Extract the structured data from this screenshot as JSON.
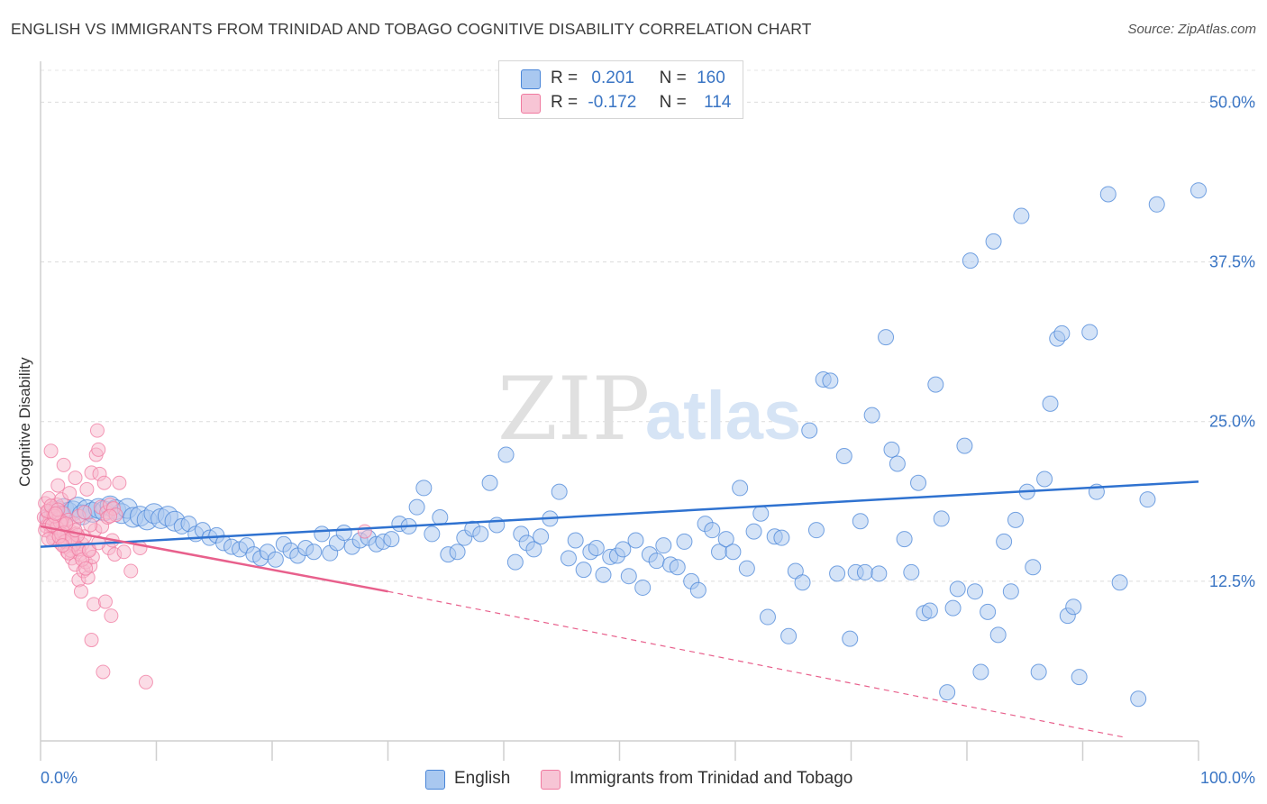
{
  "title": "ENGLISH VS IMMIGRANTS FROM TRINIDAD AND TOBAGO COGNITIVE DISABILITY CORRELATION CHART",
  "source": "Source: ZipAtlas.com",
  "watermark": {
    "zip": "ZIP",
    "atlas": "atlas"
  },
  "legend_top": [
    {
      "r_label": "R =",
      "r_value": "0.201",
      "n_label": "N =",
      "n_value": "160",
      "color": "#4a86d8"
    },
    {
      "r_label": "R =",
      "r_value": "-0.172",
      "n_label": "N =",
      "n_value": "114",
      "color": "#f07aa0"
    }
  ],
  "legend_bottom": [
    {
      "label": "English",
      "color": "#4a86d8"
    },
    {
      "label": "Immigrants from Trinidad and Tobago",
      "color": "#f07aa0"
    }
  ],
  "chart_data": {
    "type": "scatter",
    "title": "ENGLISH VS IMMIGRANTS FROM TRINIDAD AND TOBAGO COGNITIVE DISABILITY CORRELATION CHART",
    "xlabel": "",
    "ylabel": "Cognitive Disability",
    "xlim": [
      0,
      100
    ],
    "ylim": [
      0,
      52.5
    ],
    "x_tick_labels": [
      "0.0%",
      "100.0%"
    ],
    "y_ticks": [
      12.5,
      25.0,
      37.5,
      50.0
    ],
    "y_tick_labels": [
      "12.5%",
      "25.0%",
      "37.5%",
      "50.0%"
    ],
    "grid": "horizontal dashed",
    "series": [
      {
        "name": "English",
        "color": "#4a86d8",
        "fill": "#a9c8f0",
        "trend": {
          "x": [
            0,
            100
          ],
          "y": [
            15.2,
            20.3
          ],
          "style": "solid"
        },
        "points": [
          [
            0.8,
            17.5
          ],
          [
            1.2,
            17.8
          ],
          [
            1.5,
            18.0
          ],
          [
            1.8,
            17.6
          ],
          [
            2.0,
            18.2
          ],
          [
            2.4,
            17.9
          ],
          [
            2.8,
            18.0
          ],
          [
            3.2,
            18.3
          ],
          [
            3.6,
            17.7
          ],
          [
            4.0,
            18.1
          ],
          [
            4.5,
            17.9
          ],
          [
            5.0,
            18.2
          ],
          [
            5.5,
            18.0
          ],
          [
            6.0,
            18.4
          ],
          [
            6.5,
            18.1
          ],
          [
            7.0,
            17.8
          ],
          [
            7.5,
            18.2
          ],
          [
            8.0,
            17.5
          ],
          [
            8.6,
            17.6
          ],
          [
            9.2,
            17.3
          ],
          [
            9.8,
            17.8
          ],
          [
            10.4,
            17.4
          ],
          [
            11.0,
            17.6
          ],
          [
            11.6,
            17.2
          ],
          [
            12.2,
            16.8
          ],
          [
            12.8,
            17.0
          ],
          [
            13.4,
            16.2
          ],
          [
            14.0,
            16.5
          ],
          [
            14.6,
            15.9
          ],
          [
            15.2,
            16.1
          ],
          [
            15.8,
            15.5
          ],
          [
            16.5,
            15.2
          ],
          [
            17.2,
            15.0
          ],
          [
            17.8,
            15.3
          ],
          [
            18.4,
            14.6
          ],
          [
            19.0,
            14.3
          ],
          [
            19.6,
            14.8
          ],
          [
            20.3,
            14.2
          ],
          [
            21.0,
            15.4
          ],
          [
            21.6,
            14.9
          ],
          [
            22.2,
            14.5
          ],
          [
            22.9,
            15.1
          ],
          [
            23.6,
            14.8
          ],
          [
            24.3,
            16.2
          ],
          [
            25.0,
            14.7
          ],
          [
            25.6,
            15.5
          ],
          [
            26.2,
            16.3
          ],
          [
            26.9,
            15.2
          ],
          [
            27.6,
            15.7
          ],
          [
            28.3,
            15.9
          ],
          [
            29.0,
            15.4
          ],
          [
            29.6,
            15.6
          ],
          [
            30.3,
            15.8
          ],
          [
            31.0,
            17.0
          ],
          [
            31.8,
            16.8
          ],
          [
            32.5,
            18.3
          ],
          [
            33.1,
            19.8
          ],
          [
            33.8,
            16.2
          ],
          [
            34.5,
            17.5
          ],
          [
            35.2,
            14.6
          ],
          [
            36.0,
            14.8
          ],
          [
            36.6,
            15.9
          ],
          [
            37.3,
            16.6
          ],
          [
            38.0,
            16.2
          ],
          [
            38.8,
            20.2
          ],
          [
            39.4,
            16.9
          ],
          [
            40.2,
            22.4
          ],
          [
            41.0,
            14.0
          ],
          [
            41.5,
            16.2
          ],
          [
            42.0,
            15.5
          ],
          [
            42.6,
            15.0
          ],
          [
            43.2,
            16.0
          ],
          [
            44.0,
            17.4
          ],
          [
            44.8,
            19.5
          ],
          [
            45.6,
            14.3
          ],
          [
            46.2,
            15.7
          ],
          [
            46.9,
            13.4
          ],
          [
            47.5,
            14.8
          ],
          [
            48.0,
            15.1
          ],
          [
            48.6,
            13.0
          ],
          [
            49.2,
            14.4
          ],
          [
            49.8,
            14.5
          ],
          [
            50.3,
            15.0
          ],
          [
            50.8,
            12.9
          ],
          [
            51.4,
            15.7
          ],
          [
            52.0,
            12.0
          ],
          [
            52.6,
            14.6
          ],
          [
            53.2,
            14.1
          ],
          [
            53.8,
            15.3
          ],
          [
            54.4,
            13.8
          ],
          [
            55.0,
            13.6
          ],
          [
            55.6,
            15.6
          ],
          [
            56.2,
            12.5
          ],
          [
            56.8,
            11.8
          ],
          [
            57.4,
            17.0
          ],
          [
            58.0,
            16.5
          ],
          [
            58.6,
            14.8
          ],
          [
            59.2,
            15.8
          ],
          [
            59.8,
            14.8
          ],
          [
            60.4,
            19.8
          ],
          [
            61.0,
            13.5
          ],
          [
            61.6,
            16.4
          ],
          [
            62.2,
            17.8
          ],
          [
            62.8,
            9.7
          ],
          [
            63.4,
            16.0
          ],
          [
            64.0,
            15.9
          ],
          [
            64.6,
            8.2
          ],
          [
            65.2,
            13.3
          ],
          [
            65.8,
            12.4
          ],
          [
            66.4,
            24.3
          ],
          [
            67.0,
            16.5
          ],
          [
            67.6,
            28.3
          ],
          [
            68.2,
            28.2
          ],
          [
            68.8,
            13.1
          ],
          [
            69.4,
            22.3
          ],
          [
            69.9,
            8.0
          ],
          [
            70.4,
            13.2
          ],
          [
            70.8,
            17.2
          ],
          [
            71.2,
            13.2
          ],
          [
            71.8,
            25.5
          ],
          [
            72.4,
            13.1
          ],
          [
            73.0,
            31.6
          ],
          [
            73.5,
            22.8
          ],
          [
            74.0,
            21.7
          ],
          [
            74.6,
            15.8
          ],
          [
            75.2,
            13.2
          ],
          [
            75.8,
            20.2
          ],
          [
            76.3,
            10.0
          ],
          [
            76.8,
            10.2
          ],
          [
            77.3,
            27.9
          ],
          [
            77.8,
            17.4
          ],
          [
            78.3,
            3.8
          ],
          [
            78.8,
            10.4
          ],
          [
            79.2,
            11.9
          ],
          [
            79.8,
            23.1
          ],
          [
            80.3,
            37.6
          ],
          [
            80.7,
            11.7
          ],
          [
            81.2,
            5.4
          ],
          [
            81.8,
            10.1
          ],
          [
            82.3,
            39.1
          ],
          [
            82.7,
            8.3
          ],
          [
            83.2,
            15.6
          ],
          [
            83.8,
            11.7
          ],
          [
            84.2,
            17.3
          ],
          [
            84.7,
            41.1
          ],
          [
            85.2,
            19.5
          ],
          [
            85.7,
            13.6
          ],
          [
            86.2,
            5.4
          ],
          [
            86.7,
            20.5
          ],
          [
            87.2,
            26.4
          ],
          [
            87.8,
            31.5
          ],
          [
            88.2,
            31.9
          ],
          [
            88.7,
            9.8
          ],
          [
            89.2,
            10.5
          ],
          [
            89.7,
            5.0
          ],
          [
            90.6,
            32.0
          ],
          [
            91.2,
            19.5
          ],
          [
            92.2,
            42.8
          ],
          [
            93.2,
            12.4
          ],
          [
            94.8,
            3.3
          ],
          [
            95.6,
            18.9
          ],
          [
            96.4,
            42.0
          ],
          [
            100.0,
            43.1
          ]
        ]
      },
      {
        "name": "Immigrants from Trinidad and Tobago",
        "color": "#f07aa0",
        "fill": "#f7b9cd",
        "trend": {
          "x": [
            0,
            30
          ],
          "y": [
            16.8,
            11.7
          ],
          "style": "solid",
          "dashed_extension_to": [
            93.5,
            0.3
          ]
        },
        "points": [
          [
            0.3,
            17.5
          ],
          [
            0.4,
            18.6
          ],
          [
            0.5,
            16.8
          ],
          [
            0.6,
            17.9
          ],
          [
            0.7,
            19.0
          ],
          [
            0.8,
            17.2
          ],
          [
            0.9,
            16.3
          ],
          [
            1.0,
            18.2
          ],
          [
            1.1,
            17.7
          ],
          [
            1.2,
            15.9
          ],
          [
            1.3,
            17.0
          ],
          [
            1.4,
            18.5
          ],
          [
            1.5,
            16.6
          ],
          [
            1.6,
            17.4
          ],
          [
            1.7,
            15.5
          ],
          [
            1.8,
            18.9
          ],
          [
            1.9,
            16.1
          ],
          [
            2.0,
            17.8
          ],
          [
            2.1,
            15.2
          ],
          [
            2.2,
            16.9
          ],
          [
            2.3,
            14.8
          ],
          [
            2.4,
            17.3
          ],
          [
            2.5,
            15.8
          ],
          [
            2.6,
            16.4
          ],
          [
            2.7,
            14.3
          ],
          [
            2.8,
            15.6
          ],
          [
            2.9,
            17.0
          ],
          [
            3.0,
            13.8
          ],
          [
            3.1,
            16.2
          ],
          [
            3.2,
            15.1
          ],
          [
            3.3,
            12.6
          ],
          [
            3.4,
            14.6
          ],
          [
            3.5,
            11.7
          ],
          [
            3.6,
            15.4
          ],
          [
            3.7,
            13.3
          ],
          [
            3.8,
            16.0
          ],
          [
            3.9,
            14.0
          ],
          [
            4.0,
            19.7
          ],
          [
            4.1,
            12.8
          ],
          [
            4.2,
            15.0
          ],
          [
            4.3,
            13.7
          ],
          [
            4.4,
            21.0
          ],
          [
            4.5,
            14.4
          ],
          [
            4.6,
            10.7
          ],
          [
            4.7,
            16.5
          ],
          [
            4.8,
            22.4
          ],
          [
            4.9,
            24.3
          ],
          [
            5.0,
            22.8
          ],
          [
            5.1,
            20.9
          ],
          [
            5.2,
            18.3
          ],
          [
            5.3,
            16.8
          ],
          [
            5.4,
            5.4
          ],
          [
            5.5,
            20.2
          ],
          [
            5.6,
            10.9
          ],
          [
            5.7,
            17.9
          ],
          [
            5.8,
            17.5
          ],
          [
            5.9,
            15.1
          ],
          [
            6.0,
            18.5
          ],
          [
            6.1,
            9.8
          ],
          [
            6.2,
            15.7
          ],
          [
            6.3,
            18.2
          ],
          [
            6.4,
            14.6
          ],
          [
            6.5,
            17.7
          ],
          [
            0.9,
            22.7
          ],
          [
            2.0,
            21.6
          ],
          [
            1.5,
            20.0
          ],
          [
            2.5,
            19.4
          ],
          [
            3.0,
            20.6
          ],
          [
            4.4,
            7.9
          ],
          [
            6.8,
            20.2
          ],
          [
            7.2,
            14.8
          ],
          [
            7.8,
            13.3
          ],
          [
            8.6,
            15.1
          ],
          [
            9.1,
            4.6
          ],
          [
            1.3,
            16.4
          ],
          [
            1.8,
            17.2
          ],
          [
            2.3,
            16.0
          ],
          [
            2.8,
            15.3
          ],
          [
            3.3,
            17.6
          ],
          [
            3.8,
            17.9
          ],
          [
            4.3,
            16.9
          ],
          [
            0.5,
            17.4
          ],
          [
            0.8,
            16.9
          ],
          [
            1.1,
            15.8
          ],
          [
            1.4,
            16.7
          ],
          [
            1.7,
            17.1
          ],
          [
            2.0,
            16.3
          ],
          [
            2.3,
            15.7
          ],
          [
            2.6,
            14.9
          ],
          [
            2.9,
            15.4
          ],
          [
            3.2,
            16.1
          ],
          [
            0.6,
            18.0
          ],
          [
            0.9,
            18.4
          ],
          [
            1.2,
            17.6
          ],
          [
            1.5,
            18.1
          ],
          [
            1.8,
            16.2
          ],
          [
            2.1,
            15.6
          ],
          [
            2.4,
            14.7
          ],
          [
            2.7,
            15.9
          ],
          [
            3.0,
            16.5
          ],
          [
            3.3,
            15.0
          ],
          [
            3.6,
            14.2
          ],
          [
            3.9,
            13.5
          ],
          [
            4.2,
            14.9
          ],
          [
            0.4,
            16.5
          ],
          [
            0.7,
            15.8
          ],
          [
            1.0,
            16.9
          ],
          [
            1.3,
            17.8
          ],
          [
            28.0,
            16.4
          ],
          [
            6.0,
            17.6
          ],
          [
            5.0,
            15.5
          ],
          [
            2.2,
            17.0
          ],
          [
            1.6,
            16.0
          ],
          [
            1.9,
            15.3
          ]
        ]
      }
    ]
  }
}
